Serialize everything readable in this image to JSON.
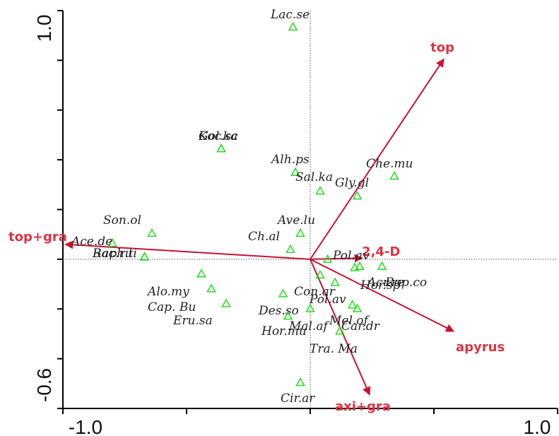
{
  "chart_data": {
    "type": "scatter",
    "title": "",
    "xlabel": "",
    "ylabel": "",
    "xlim": [
      -1.0,
      1.0
    ],
    "ylim": [
      -0.6,
      1.0
    ],
    "x_tick_labels": [
      "-1.0",
      "1.0"
    ],
    "y_tick_labels": [
      "-0.6",
      "1.0"
    ],
    "colors": {
      "species_marker": "#22dd22",
      "arrow": "#cc1133",
      "env_label": "#dd3344",
      "axes": "#000000",
      "origin_lines": "#555555"
    },
    "species": [
      {
        "label": "Lac.se",
        "x": -0.07,
        "y": 0.935
      },
      {
        "label": "Koc.sc",
        "x": -0.36,
        "y": 0.445
      },
      {
        "label": "Gol.ka",
        "x": -0.36,
        "y": 0.445
      },
      {
        "label": "Alh.ps",
        "x": -0.06,
        "y": 0.35
      },
      {
        "label": "Sal.ka",
        "x": 0.04,
        "y": 0.275
      },
      {
        "label": "Gly.gl",
        "x": 0.19,
        "y": 0.255
      },
      {
        "label": "Che.mu",
        "x": 0.34,
        "y": 0.335
      },
      {
        "label": "Son.ol",
        "x": -0.64,
        "y": 0.105
      },
      {
        "label": "Ave.lu",
        "x": -0.04,
        "y": 0.105
      },
      {
        "label": "Ch.al",
        "x": -0.08,
        "y": 0.04
      },
      {
        "label": "Ace.de",
        "x": -0.8,
        "y": 0.065
      },
      {
        "label": "Bac.ru",
        "x": -0.67,
        "y": 0.01
      },
      {
        "label": "Raph.ti",
        "x": -0.67,
        "y": 0.01
      },
      {
        "label": "Pol.av",
        "x": 0.07,
        "y": 0.0
      },
      {
        "label": "Acr.re",
        "x": 0.2,
        "y": -0.028
      },
      {
        "label": "Hor.sp",
        "x": 0.18,
        "y": -0.033
      },
      {
        "label": "Rop.co",
        "x": 0.29,
        "y": -0.028
      },
      {
        "label": "Alo.my",
        "x": -0.44,
        "y": -0.058
      },
      {
        "label": "Cap. Bu",
        "x": -0.4,
        "y": -0.118
      },
      {
        "label": "Eru.sa",
        "x": -0.34,
        "y": -0.178
      },
      {
        "label": "Con.ar",
        "x": 0.04,
        "y": -0.063
      },
      {
        "label": "Pol.av",
        "x": 0.1,
        "y": -0.093
      },
      {
        "label": "Des.so",
        "x": -0.11,
        "y": -0.138
      },
      {
        "label": "Mal.af",
        "x": 0.0,
        "y": -0.198
      },
      {
        "label": "Mel.of",
        "x": 0.17,
        "y": -0.183
      },
      {
        "label": "Car.dr",
        "x": 0.19,
        "y": -0.198
      },
      {
        "label": "Hor.mu",
        "x": -0.09,
        "y": -0.228
      },
      {
        "label": "Tra. Ma",
        "x": 0.12,
        "y": -0.288
      },
      {
        "label": "Cir.ar",
        "x": -0.04,
        "y": -0.495
      }
    ],
    "env_vectors": [
      {
        "label": "top",
        "x": 0.54,
        "y": 0.805
      },
      {
        "label": "top+gra",
        "x": -0.99,
        "y": 0.06
      },
      {
        "label": "2,4-D",
        "x": 0.21,
        "y": 0.005
      },
      {
        "label": "apyrus",
        "x": 0.58,
        "y": -0.29
      },
      {
        "label": "axi+gra",
        "x": 0.24,
        "y": -0.545
      }
    ]
  }
}
